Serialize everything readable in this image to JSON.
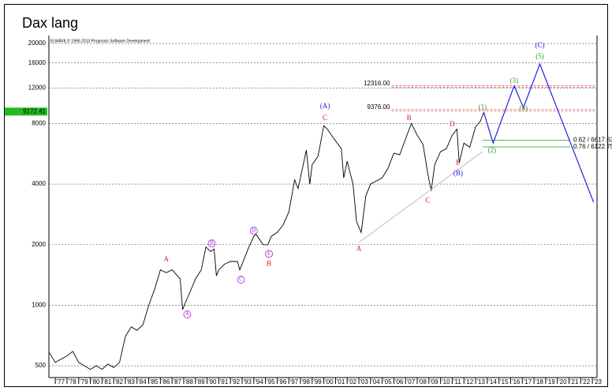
{
  "chart_data": {
    "type": "line",
    "title": "Dax lang",
    "subtitle": "ELWAVE,© 1995-2013 Prognosis Software Development",
    "log_scale": true,
    "grid": true,
    "xlim": [
      1976.45,
      2023.4
    ],
    "ylim": [
      437,
      21900
    ],
    "yticks": [
      500,
      1000,
      2000,
      4000,
      8000,
      12000,
      16000,
      20000
    ],
    "xticks": [
      {
        "value": 1977,
        "label": "'77"
      },
      {
        "value": 1978,
        "label": "'78"
      },
      {
        "value": 1979,
        "label": "'79"
      },
      {
        "value": 1980,
        "label": "'80"
      },
      {
        "value": 1981,
        "label": "'81"
      },
      {
        "value": 1982,
        "label": "'82"
      },
      {
        "value": 1983,
        "label": "'83"
      },
      {
        "value": 1984,
        "label": "'84"
      },
      {
        "value": 1985,
        "label": "'85"
      },
      {
        "value": 1986,
        "label": "'86"
      },
      {
        "value": 1987,
        "label": "'87"
      },
      {
        "value": 1988,
        "label": "'88"
      },
      {
        "value": 1989,
        "label": "'89"
      },
      {
        "value": 1990,
        "label": "'90"
      },
      {
        "value": 1991,
        "label": "'91"
      },
      {
        "value": 1992,
        "label": "'92"
      },
      {
        "value": 1993,
        "label": "'93"
      },
      {
        "value": 1994,
        "label": "'94"
      },
      {
        "value": 1995,
        "label": "'95"
      },
      {
        "value": 1996,
        "label": "'96"
      },
      {
        "value": 1997,
        "label": "'97"
      },
      {
        "value": 1998,
        "label": "'98"
      },
      {
        "value": 1999,
        "label": "'99"
      },
      {
        "value": 2000,
        "label": "'00"
      },
      {
        "value": 2001,
        "label": "'01"
      },
      {
        "value": 2002,
        "label": "'02"
      },
      {
        "value": 2003,
        "label": "'03"
      },
      {
        "value": 2004,
        "label": "'04"
      },
      {
        "value": 2005,
        "label": "'05"
      },
      {
        "value": 2006,
        "label": "'06"
      },
      {
        "value": 2007,
        "label": "'07"
      },
      {
        "value": 2008,
        "label": "'08"
      },
      {
        "value": 2009,
        "label": "'09"
      },
      {
        "value": 2010,
        "label": "'10"
      },
      {
        "value": 2011,
        "label": "'11"
      },
      {
        "value": 2012,
        "label": "'12"
      },
      {
        "value": 2013,
        "label": "'13"
      },
      {
        "value": 2014,
        "label": "'14"
      },
      {
        "value": 2015,
        "label": "'15"
      },
      {
        "value": 2016,
        "label": "'16"
      },
      {
        "value": 2017,
        "label": "'17"
      },
      {
        "value": 2018,
        "label": "'18"
      },
      {
        "value": 2019,
        "label": "'19"
      },
      {
        "value": 2020,
        "label": "'20"
      },
      {
        "value": 2021,
        "label": "'21"
      },
      {
        "value": 2022,
        "label": "'22"
      },
      {
        "value": 2023,
        "label": "'23"
      }
    ],
    "series": [
      {
        "color": "#000000",
        "x": [
          1976.5,
          1977,
          1977.5,
          1978,
          1978.5,
          1979,
          1979.5,
          1980,
          1980.5,
          1981,
          1981.5,
          1982,
          1982.5,
          1983,
          1983.5,
          1984,
          1984.5,
          1985,
          1985.5,
          1986,
          1986.5,
          1987,
          1987.7,
          1987.9,
          1988.2,
          1988.5,
          1989,
          1989.5,
          1989.9,
          1990.3,
          1990.6,
          1990.8,
          1991,
          1991.5,
          1992,
          1992.6,
          1992.8,
          1993,
          1993.5,
          1994,
          1994.2,
          1994.8,
          1995.2,
          1995.5,
          1996,
          1996.5,
          1997,
          1997.5,
          1997.8,
          1998.5,
          1998.8,
          1999,
          1999.5,
          2000,
          2000.3,
          2000.8,
          2001.5,
          2001.7,
          2002,
          2002.5,
          2002.8,
          2003.2,
          2003.6,
          2004,
          2005,
          2005.5,
          2006,
          2006.5,
          2007,
          2007.5,
          2008,
          2008.5,
          2008.9,
          2009.2,
          2009.5,
          2010,
          2010.5,
          2011,
          2011.4,
          2011.6,
          2012,
          2012.5,
          2013,
          2013.4,
          2013.7
        ],
        "values": [
          580,
          520,
          540,
          560,
          590,
          520,
          500,
          480,
          500,
          480,
          510,
          490,
          520,
          700,
          780,
          750,
          800,
          1000,
          1200,
          1500,
          1450,
          1500,
          1350,
          950,
          1050,
          1150,
          1350,
          1500,
          1950,
          1850,
          1900,
          1400,
          1500,
          1600,
          1650,
          1650,
          1500,
          1600,
          1900,
          2200,
          2250,
          2000,
          2000,
          2200,
          2300,
          2500,
          2900,
          4200,
          3800,
          5900,
          4000,
          5000,
          5500,
          7800,
          7500,
          6800,
          6000,
          4300,
          5200,
          4000,
          2600,
          2300,
          3500,
          4000,
          4300,
          4800,
          5700,
          5600,
          6700,
          8000,
          7000,
          6300,
          4500,
          3700,
          5000,
          5800,
          6000,
          7000,
          7500,
          5100,
          6400,
          6100,
          7700,
          8200,
          9100
        ]
      },
      {
        "color": "#2222dd",
        "x": [
          2013.7,
          2014.5,
          2016.3,
          2017.1,
          2018.5,
          2023.1
        ],
        "values": [
          9100,
          6400,
          12300,
          9600,
          15800,
          3250
        ]
      },
      {
        "color": "#c8c8c8",
        "x": [
          2003.0,
          2013.6
        ],
        "values": [
          2050,
          5800
        ]
      }
    ],
    "levels": [
      {
        "value": 12316,
        "label": "12316.00",
        "color": "#e05050",
        "x": [
          2005.8,
          2023.4
        ]
      },
      {
        "value": 9376,
        "label": "9376.00",
        "color": "#e05050",
        "x": [
          2005.8,
          2023.4
        ]
      },
      {
        "value": 6617.63,
        "label": "0.62 / 6617.63",
        "color": "#2a9d2a",
        "x": [
          2013.6,
          2021.1
        ]
      },
      {
        "value": 6122.75,
        "label": "0.76 / 6122.75",
        "color": "#2a9d2a",
        "x": [
          2013.6,
          2021.1
        ]
      }
    ],
    "last_price": {
      "value": 9172.41,
      "label": "9172.41",
      "color": "#22bb22"
    },
    "annotations": [
      {
        "text": "A",
        "x": 1986.5,
        "y": 1680,
        "color": "#dd2222"
      },
      {
        "text": "B",
        "x": 1995.3,
        "y": 1600,
        "color": "#dd2222"
      },
      {
        "text": "C",
        "x": 2000.1,
        "y": 8500,
        "color": "#dd2222"
      },
      {
        "text": "A",
        "x": 2003.0,
        "y": 1900,
        "color": "#dd2222"
      },
      {
        "text": "B",
        "x": 2007.3,
        "y": 8500,
        "color": "#dd2222"
      },
      {
        "text": "C",
        "x": 2008.9,
        "y": 3300,
        "color": "#dd2222"
      },
      {
        "text": "D",
        "x": 2011.0,
        "y": 7900,
        "color": "#dd2222"
      },
      {
        "text": "E",
        "x": 2011.5,
        "y": 5100,
        "color": "#dd2222"
      },
      {
        "text": "A",
        "x": 1988.3,
        "y": 900,
        "color": "#aa22cc",
        "circled": true
      },
      {
        "text": "B",
        "x": 1990.4,
        "y": 2030,
        "color": "#aa22cc",
        "circled": true
      },
      {
        "text": "C",
        "x": 1992.9,
        "y": 1340,
        "color": "#aa22cc",
        "circled": true
      },
      {
        "text": "D",
        "x": 1994.0,
        "y": 2350,
        "color": "#aa22cc",
        "circled": true
      },
      {
        "text": "E",
        "x": 1995.3,
        "y": 1800,
        "color": "#aa22cc",
        "circled": true
      },
      {
        "text": "(A)",
        "x": 2000.1,
        "y": 9700,
        "color": "#2222dd"
      },
      {
        "text": "(B)",
        "x": 2011.5,
        "y": 4500,
        "color": "#2222dd"
      },
      {
        "text": "(C)",
        "x": 2018.5,
        "y": 19500,
        "color": "#2222dd"
      },
      {
        "text": "(1)",
        "x": 2013.6,
        "y": 9600,
        "color": "#2a9d2a"
      },
      {
        "text": "(2)",
        "x": 2014.4,
        "y": 5860,
        "color": "#2a9d2a"
      },
      {
        "text": "(3)",
        "x": 2016.3,
        "y": 13000,
        "color": "#2a9d2a"
      },
      {
        "text": "(4)",
        "x": 2017.1,
        "y": 9500,
        "color": "#2a9d2a"
      },
      {
        "text": "(5)",
        "x": 2018.5,
        "y": 17200,
        "color": "#2a9d2a"
      }
    ]
  }
}
